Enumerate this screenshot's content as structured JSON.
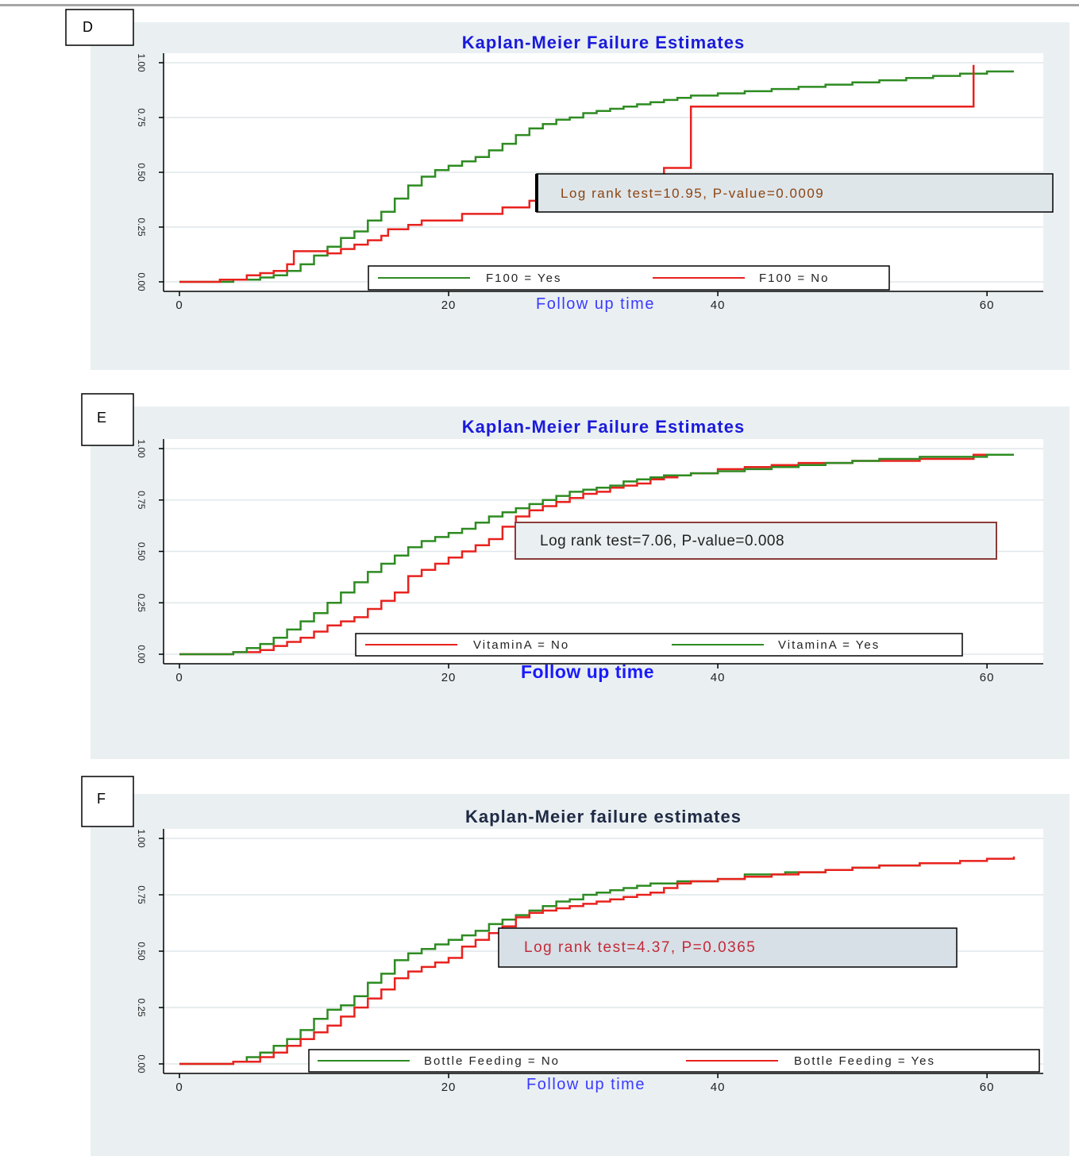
{
  "chart_data": [
    {
      "type": "line",
      "panel_label": "D",
      "title": "Kaplan-Meier Failure Estimates",
      "xlabel": "Follow up time",
      "ylabel": "",
      "xlim": [
        0,
        63
      ],
      "ylim": [
        0,
        1
      ],
      "x_ticks": [
        0,
        20,
        40,
        60
      ],
      "y_ticks": [
        0,
        0.25,
        0.5,
        0.75,
        1
      ],
      "y_tick_labels": [
        "0.00",
        "0.25",
        "0.50",
        "0.75",
        "1.00"
      ],
      "grid": true,
      "legend_position": "bottom-center",
      "annotation": "Log rank test=10.95, P-value=0.0009",
      "colors": {
        "title": "#1a1adb",
        "xlabel": "#3a3aff",
        "annotation": "#8b4513",
        "annotation_bg": "#dfe6ea",
        "plot_bg": "#eaf0f2"
      },
      "series": [
        {
          "name": "F100 = Yes",
          "color": "#2e8b22",
          "steps": [
            [
              0,
              0
            ],
            [
              4,
              0.01
            ],
            [
              6,
              0.02
            ],
            [
              7,
              0.03
            ],
            [
              8,
              0.05
            ],
            [
              9,
              0.08
            ],
            [
              10,
              0.12
            ],
            [
              11,
              0.16
            ],
            [
              12,
              0.2
            ],
            [
              13,
              0.23
            ],
            [
              14,
              0.28
            ],
            [
              15,
              0.32
            ],
            [
              16,
              0.38
            ],
            [
              17,
              0.44
            ],
            [
              18,
              0.48
            ],
            [
              19,
              0.51
            ],
            [
              20,
              0.53
            ],
            [
              21,
              0.55
            ],
            [
              22,
              0.57
            ],
            [
              23,
              0.6
            ],
            [
              24,
              0.63
            ],
            [
              25,
              0.67
            ],
            [
              26,
              0.7
            ],
            [
              27,
              0.72
            ],
            [
              28,
              0.74
            ],
            [
              29,
              0.75
            ],
            [
              30,
              0.77
            ],
            [
              31,
              0.78
            ],
            [
              32,
              0.79
            ],
            [
              33,
              0.8
            ],
            [
              34,
              0.81
            ],
            [
              35,
              0.82
            ],
            [
              36,
              0.83
            ],
            [
              37,
              0.84
            ],
            [
              38,
              0.85
            ],
            [
              40,
              0.86
            ],
            [
              42,
              0.87
            ],
            [
              44,
              0.88
            ],
            [
              46,
              0.89
            ],
            [
              48,
              0.9
            ],
            [
              50,
              0.91
            ],
            [
              52,
              0.92
            ],
            [
              54,
              0.93
            ],
            [
              56,
              0.94
            ],
            [
              58,
              0.95
            ],
            [
              60,
              0.96
            ],
            [
              62,
              0.96
            ]
          ]
        },
        {
          "name": "F100 = No",
          "color": "#e8221e",
          "steps": [
            [
              0,
              0
            ],
            [
              3,
              0.01
            ],
            [
              5,
              0.03
            ],
            [
              6,
              0.04
            ],
            [
              7,
              0.05
            ],
            [
              8,
              0.08
            ],
            [
              8.5,
              0.14
            ],
            [
              9,
              0.14
            ],
            [
              11,
              0.13
            ],
            [
              12,
              0.15
            ],
            [
              13,
              0.17
            ],
            [
              14,
              0.19
            ],
            [
              15,
              0.21
            ],
            [
              15.5,
              0.24
            ],
            [
              16,
              0.24
            ],
            [
              17,
              0.26
            ],
            [
              18,
              0.28
            ],
            [
              21,
              0.31
            ],
            [
              24,
              0.34
            ],
            [
              26,
              0.37
            ],
            [
              27,
              0.42
            ],
            [
              36,
              0.42
            ],
            [
              36,
              0.52
            ],
            [
              38,
              0.52
            ],
            [
              38,
              0.8
            ],
            [
              59,
              0.8
            ],
            [
              59,
              0.99
            ]
          ]
        }
      ]
    },
    {
      "type": "line",
      "panel_label": "E",
      "title": "Kaplan-Meier Failure Estimates",
      "xlabel": "Follow up time",
      "ylabel": "",
      "xlim": [
        0,
        63
      ],
      "ylim": [
        0,
        1
      ],
      "x_ticks": [
        0,
        20,
        40,
        60
      ],
      "y_ticks": [
        0,
        0.25,
        0.5,
        0.75,
        1
      ],
      "y_tick_labels": [
        "0.00",
        "0.25",
        "0.50",
        "0.75",
        "1.00"
      ],
      "grid": true,
      "legend_position": "bottom-center",
      "annotation": "Log rank test=7.06, P-value=0.008",
      "colors": {
        "title": "#1a1adb",
        "xlabel": "#1a1aff",
        "annotation": "#222222",
        "annotation_bg": "#eaf0f2",
        "annotation_border": "#8b3a3a",
        "plot_bg": "#eaf0f2"
      },
      "series": [
        {
          "name": "VitaminA = No",
          "color": "#e8221e",
          "steps": [
            [
              0,
              0
            ],
            [
              4,
              0.01
            ],
            [
              6,
              0.02
            ],
            [
              7,
              0.04
            ],
            [
              8,
              0.06
            ],
            [
              9,
              0.08
            ],
            [
              10,
              0.11
            ],
            [
              11,
              0.14
            ],
            [
              12,
              0.16
            ],
            [
              13,
              0.18
            ],
            [
              14,
              0.22
            ],
            [
              15,
              0.26
            ],
            [
              16,
              0.3
            ],
            [
              17,
              0.38
            ],
            [
              18,
              0.41
            ],
            [
              19,
              0.44
            ],
            [
              20,
              0.47
            ],
            [
              21,
              0.5
            ],
            [
              22,
              0.53
            ],
            [
              23,
              0.56
            ],
            [
              24,
              0.62
            ],
            [
              25,
              0.67
            ],
            [
              26,
              0.7
            ],
            [
              27,
              0.72
            ],
            [
              28,
              0.74
            ],
            [
              29,
              0.76
            ],
            [
              30,
              0.78
            ],
            [
              31,
              0.79
            ],
            [
              32,
              0.81
            ],
            [
              33,
              0.82
            ],
            [
              34,
              0.83
            ],
            [
              35,
              0.85
            ],
            [
              36,
              0.86
            ],
            [
              37,
              0.87
            ],
            [
              38,
              0.88
            ],
            [
              40,
              0.9
            ],
            [
              42,
              0.91
            ],
            [
              44,
              0.92
            ],
            [
              46,
              0.93
            ],
            [
              48,
              0.93
            ],
            [
              50,
              0.94
            ],
            [
              55,
              0.95
            ],
            [
              59,
              0.95
            ],
            [
              59,
              0.97
            ],
            [
              62,
              0.97
            ]
          ]
        },
        {
          "name": "VitaminA = Yes",
          "color": "#2e8b22",
          "steps": [
            [
              0,
              0
            ],
            [
              4,
              0.01
            ],
            [
              5,
              0.03
            ],
            [
              6,
              0.05
            ],
            [
              7,
              0.08
            ],
            [
              8,
              0.12
            ],
            [
              9,
              0.16
            ],
            [
              10,
              0.2
            ],
            [
              11,
              0.25
            ],
            [
              12,
              0.3
            ],
            [
              13,
              0.35
            ],
            [
              14,
              0.4
            ],
            [
              15,
              0.44
            ],
            [
              16,
              0.48
            ],
            [
              17,
              0.52
            ],
            [
              18,
              0.55
            ],
            [
              19,
              0.57
            ],
            [
              20,
              0.59
            ],
            [
              21,
              0.61
            ],
            [
              22,
              0.64
            ],
            [
              23,
              0.67
            ],
            [
              24,
              0.69
            ],
            [
              25,
              0.71
            ],
            [
              26,
              0.73
            ],
            [
              27,
              0.75
            ],
            [
              28,
              0.77
            ],
            [
              29,
              0.79
            ],
            [
              30,
              0.8
            ],
            [
              31,
              0.81
            ],
            [
              32,
              0.82
            ],
            [
              33,
              0.84
            ],
            [
              34,
              0.85
            ],
            [
              35,
              0.86
            ],
            [
              36,
              0.87
            ],
            [
              38,
              0.88
            ],
            [
              40,
              0.89
            ],
            [
              42,
              0.9
            ],
            [
              44,
              0.91
            ],
            [
              46,
              0.92
            ],
            [
              48,
              0.93
            ],
            [
              50,
              0.94
            ],
            [
              52,
              0.95
            ],
            [
              55,
              0.96
            ],
            [
              60,
              0.97
            ],
            [
              62,
              0.97
            ]
          ]
        }
      ]
    },
    {
      "type": "line",
      "panel_label": "F",
      "title": "Kaplan-Meier failure estimates",
      "xlabel": "Follow up time",
      "ylabel": "",
      "xlim": [
        0,
        63
      ],
      "ylim": [
        0,
        1
      ],
      "x_ticks": [
        0,
        20,
        40,
        60
      ],
      "y_ticks": [
        0,
        0.25,
        0.5,
        0.75,
        1
      ],
      "y_tick_labels": [
        "0.00",
        "0.25",
        "0.50",
        "0.75",
        "1.00"
      ],
      "grid": true,
      "legend_position": "bottom-center",
      "annotation": "Log rank test=4.37, P=0.0365",
      "colors": {
        "title": "#1f2a44",
        "xlabel": "#3a3aff",
        "annotation": "#c42a3a",
        "annotation_bg": "#d7e0e6",
        "plot_bg": "#eaf0f2"
      },
      "series": [
        {
          "name": "Bottle Feeding = No",
          "color": "#2e8b22",
          "steps": [
            [
              0,
              0
            ],
            [
              4,
              0.01
            ],
            [
              5,
              0.03
            ],
            [
              6,
              0.05
            ],
            [
              7,
              0.08
            ],
            [
              8,
              0.11
            ],
            [
              9,
              0.15
            ],
            [
              10,
              0.2
            ],
            [
              11,
              0.24
            ],
            [
              12,
              0.26
            ],
            [
              13,
              0.3
            ],
            [
              14,
              0.36
            ],
            [
              15,
              0.4
            ],
            [
              16,
              0.46
            ],
            [
              17,
              0.49
            ],
            [
              18,
              0.51
            ],
            [
              19,
              0.53
            ],
            [
              20,
              0.55
            ],
            [
              21,
              0.57
            ],
            [
              22,
              0.59
            ],
            [
              23,
              0.62
            ],
            [
              24,
              0.64
            ],
            [
              25,
              0.66
            ],
            [
              26,
              0.68
            ],
            [
              27,
              0.7
            ],
            [
              28,
              0.72
            ],
            [
              29,
              0.73
            ],
            [
              30,
              0.75
            ],
            [
              31,
              0.76
            ],
            [
              32,
              0.77
            ],
            [
              33,
              0.78
            ],
            [
              34,
              0.79
            ],
            [
              35,
              0.8
            ],
            [
              37,
              0.81
            ],
            [
              40,
              0.82
            ],
            [
              42,
              0.84
            ],
            [
              45,
              0.85
            ],
            [
              48,
              0.86
            ],
            [
              50,
              0.87
            ],
            [
              52,
              0.88
            ],
            [
              55,
              0.89
            ],
            [
              58,
              0.89
            ]
          ]
        },
        {
          "name": "Bottle Feeding = Yes",
          "color": "#e8221e",
          "steps": [
            [
              0,
              0
            ],
            [
              4,
              0.01
            ],
            [
              6,
              0.03
            ],
            [
              7,
              0.05
            ],
            [
              8,
              0.08
            ],
            [
              9,
              0.11
            ],
            [
              10,
              0.14
            ],
            [
              11,
              0.17
            ],
            [
              12,
              0.21
            ],
            [
              13,
              0.25
            ],
            [
              14,
              0.29
            ],
            [
              15,
              0.33
            ],
            [
              16,
              0.38
            ],
            [
              17,
              0.41
            ],
            [
              18,
              0.43
            ],
            [
              19,
              0.45
            ],
            [
              20,
              0.47
            ],
            [
              21,
              0.52
            ],
            [
              22,
              0.55
            ],
            [
              23,
              0.58
            ],
            [
              24,
              0.61
            ],
            [
              25,
              0.65
            ],
            [
              26,
              0.67
            ],
            [
              27,
              0.68
            ],
            [
              28,
              0.69
            ],
            [
              29,
              0.7
            ],
            [
              30,
              0.71
            ],
            [
              31,
              0.72
            ],
            [
              32,
              0.73
            ],
            [
              33,
              0.74
            ],
            [
              34,
              0.75
            ],
            [
              35,
              0.76
            ],
            [
              36,
              0.78
            ],
            [
              37,
              0.8
            ],
            [
              38,
              0.81
            ],
            [
              40,
              0.82
            ],
            [
              42,
              0.83
            ],
            [
              44,
              0.84
            ],
            [
              46,
              0.85
            ],
            [
              48,
              0.86
            ],
            [
              50,
              0.87
            ],
            [
              52,
              0.88
            ],
            [
              55,
              0.89
            ],
            [
              58,
              0.9
            ],
            [
              60,
              0.91
            ],
            [
              62,
              0.92
            ]
          ]
        }
      ]
    }
  ]
}
